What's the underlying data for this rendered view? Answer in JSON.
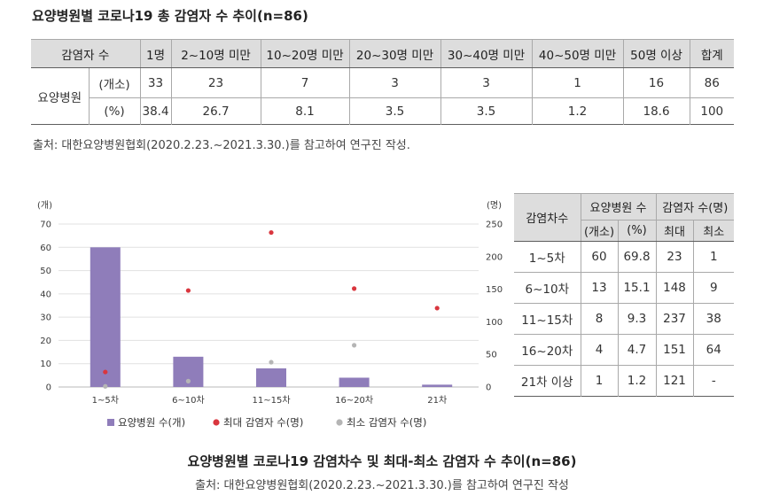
{
  "title": "요양병원별 코로나19 총 감염자 수 추이(n=86)",
  "summary_table": {
    "corner_label": "감염자 수",
    "columns": [
      "1명",
      "2~10명 미만",
      "10~20명 미만",
      "20~30명 미만",
      "30~40명 미만",
      "40~50명 미만",
      "50명 이상",
      "합계"
    ],
    "row_group_label": "요양병원",
    "rows": [
      {
        "unit": "(개소)",
        "values": [
          "33",
          "23",
          "7",
          "3",
          "3",
          "1",
          "16",
          "86"
        ]
      },
      {
        "unit": "(%)",
        "values": [
          "38.4",
          "26.7",
          "8.1",
          "3.5",
          "3.5",
          "1.2",
          "18.6",
          "100"
        ]
      }
    ],
    "source": "출처: 대한요양병원협회(2020.2.23.~2021.3.30.)를 참고하여 연구진 작성."
  },
  "chart_data": {
    "type": "bar",
    "categories": [
      "1~5차",
      "6~10차",
      "11~15차",
      "16~20차",
      "21차"
    ],
    "series": [
      {
        "name": "요양병원 수(개)",
        "type": "bar",
        "axis": "left",
        "values": [
          60,
          13,
          8,
          4,
          1
        ],
        "color": "#8f7dba"
      },
      {
        "name": "최대 감염자 수(명)",
        "type": "scatter",
        "axis": "right",
        "values": [
          23,
          148,
          237,
          151,
          121
        ],
        "color": "#d9363e"
      },
      {
        "name": "최소 감염자 수(명)",
        "type": "scatter",
        "axis": "right",
        "values": [
          1,
          9,
          38,
          64,
          null
        ],
        "color": "#b5b5b5"
      }
    ],
    "ylabel": "(개)",
    "ylim": [
      0,
      70
    ],
    "yticks": [
      0,
      10,
      20,
      30,
      40,
      50,
      60,
      70
    ],
    "y2label": "(명)",
    "y2lim": [
      0,
      250
    ],
    "y2ticks": [
      0,
      50,
      100,
      150,
      200,
      250
    ],
    "grid": true,
    "legend": "bottom"
  },
  "infection_table": {
    "round_header": "감염차수",
    "hospital_header": "요양병원 수",
    "case_header": "감염자 수(명)",
    "subheaders": [
      "(개소)",
      "(%)",
      "최대",
      "최소"
    ],
    "rows": [
      {
        "round": "1~5차",
        "count": "60",
        "pct": "69.8",
        "max": "23",
        "min": "1"
      },
      {
        "round": "6~10차",
        "count": "13",
        "pct": "15.1",
        "max": "148",
        "min": "9"
      },
      {
        "round": "11~15차",
        "count": "8",
        "pct": "9.3",
        "max": "237",
        "min": "38"
      },
      {
        "round": "16~20차",
        "count": "4",
        "pct": "4.7",
        "max": "151",
        "min": "64"
      },
      {
        "round": "21차 이상",
        "count": "1",
        "pct": "1.2",
        "max": "121",
        "min": "-"
      }
    ]
  },
  "figure": {
    "caption": "요양병원별 코로나19 감염차수 및 최대-최소 감염자 수 추이(n=86)",
    "source": "출처: 대한요양병원협회(2020.2.23.~2021.3.30.)를 참고하여 연구진 작성"
  }
}
